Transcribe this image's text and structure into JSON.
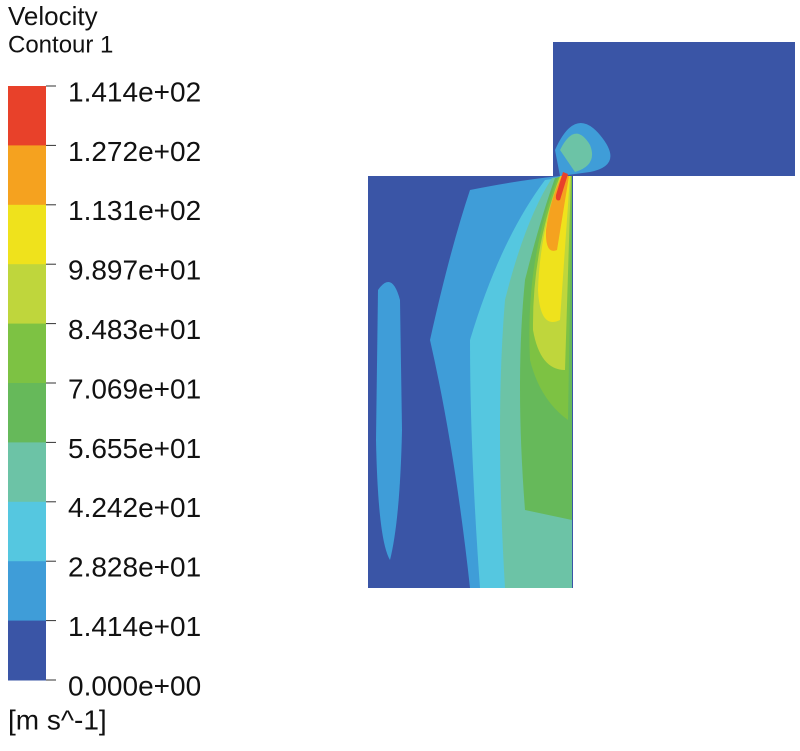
{
  "header": {
    "title": "Velocity",
    "subtitle": "Contour 1"
  },
  "legend": {
    "labels": [
      "1.414e+02",
      "1.272e+02",
      "1.131e+02",
      "9.897e+01",
      "8.483e+01",
      "7.069e+01",
      "5.655e+01",
      "4.242e+01",
      "2.828e+01",
      "1.414e+01",
      "0.000e+00"
    ],
    "colors": [
      "#e8412a",
      "#f5a21f",
      "#efe21c",
      "#bfd63c",
      "#7dc243",
      "#66b95a",
      "#6cc3a6",
      "#55c7e0",
      "#3f9dd8",
      "#3a55a6"
    ],
    "unit": "[m s^-1]"
  }
}
